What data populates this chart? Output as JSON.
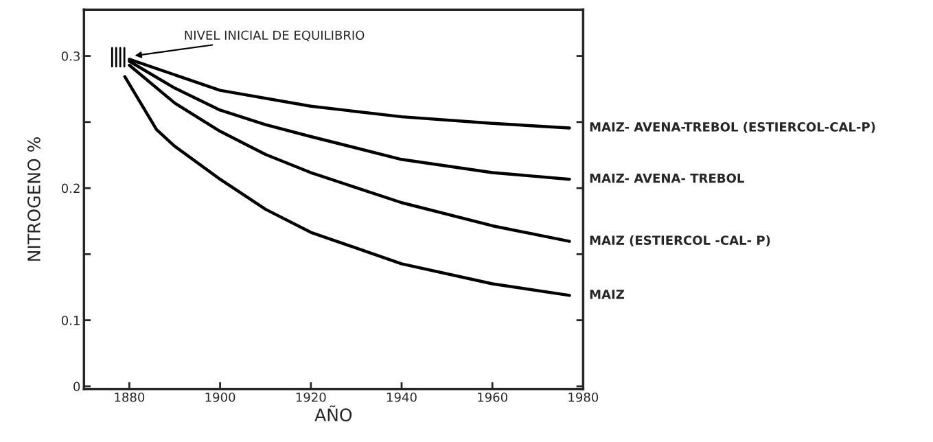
{
  "chart_data": {
    "type": "line",
    "xlabel": "AÑO",
    "ylabel": "NITROGENO %",
    "xlim": [
      1870,
      1980
    ],
    "xticks": [
      1880,
      1900,
      1920,
      1940,
      1960,
      1980
    ],
    "ylim": [
      0.048,
      0.335
    ],
    "yticks": [
      {
        "value": 0.05,
        "label": "0"
      },
      0.1,
      {
        "value": 0.15,
        "label": null
      },
      0.2,
      {
        "value": 0.25,
        "label": null
      },
      0.3
    ],
    "grid": false,
    "legend": false,
    "marker": "none",
    "line_style": "solid",
    "annotations": [
      "NIVEL INICIAL DE EQUILIBRIO"
    ],
    "series": [
      {
        "name": "MAIZ- AVENA-TREBOL (ESTIERCOL-CAL-P)",
        "color": "#000000",
        "x": [
          1880,
          1900,
          1920,
          1940,
          1960,
          1977
        ],
        "values": [
          0.2975,
          0.274,
          0.262,
          0.254,
          0.249,
          0.2455
        ]
      },
      {
        "name": "MAIZ- AVENA- TREBOL",
        "color": "#000000",
        "x": [
          1880,
          1890,
          1900,
          1910,
          1920,
          1940,
          1960,
          1977
        ],
        "values": [
          0.296,
          0.2757,
          0.259,
          0.248,
          0.239,
          0.2217,
          0.2117,
          0.2067
        ]
      },
      {
        "name": "MAIZ (ESTIERCOL -CAL- P)",
        "color": "#000000",
        "x": [
          1880,
          1890,
          1900,
          1910,
          1920,
          1940,
          1960,
          1977
        ],
        "values": [
          0.293,
          0.2644,
          0.243,
          0.2255,
          0.2117,
          0.189,
          0.1715,
          0.1597
        ]
      },
      {
        "name": "MAIZ",
        "color": "#000000",
        "x": [
          1879,
          1886,
          1890,
          1900,
          1910,
          1920,
          1940,
          1960,
          1977
        ],
        "values": [
          0.2844,
          0.2443,
          0.2317,
          0.2067,
          0.184,
          0.1665,
          0.1427,
          0.1276,
          0.1188
        ]
      }
    ]
  }
}
